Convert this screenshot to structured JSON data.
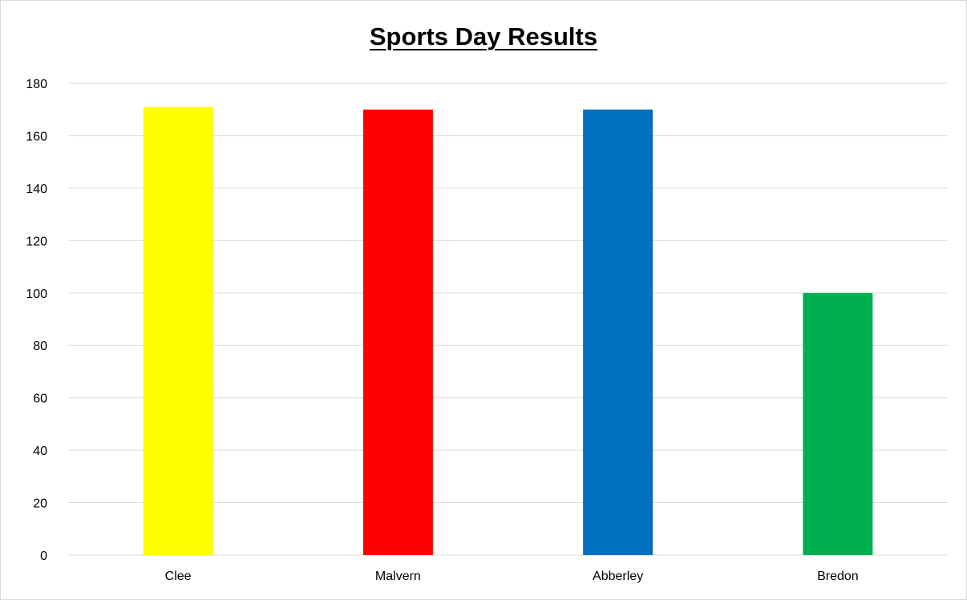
{
  "chart_data": {
    "type": "bar",
    "title": "Sports Day Results",
    "xlabel": "",
    "ylabel": "",
    "categories": [
      "Clee",
      "Malvern",
      "Abberley",
      "Bredon"
    ],
    "values": [
      171,
      170,
      170,
      100
    ],
    "colors": [
      "#ffff00",
      "#ff0000",
      "#0070c0",
      "#00b050"
    ],
    "ylim": [
      0,
      180
    ],
    "yticks": [
      0,
      20,
      40,
      60,
      80,
      100,
      120,
      140,
      160,
      180
    ],
    "grid": true,
    "legend": "none"
  }
}
